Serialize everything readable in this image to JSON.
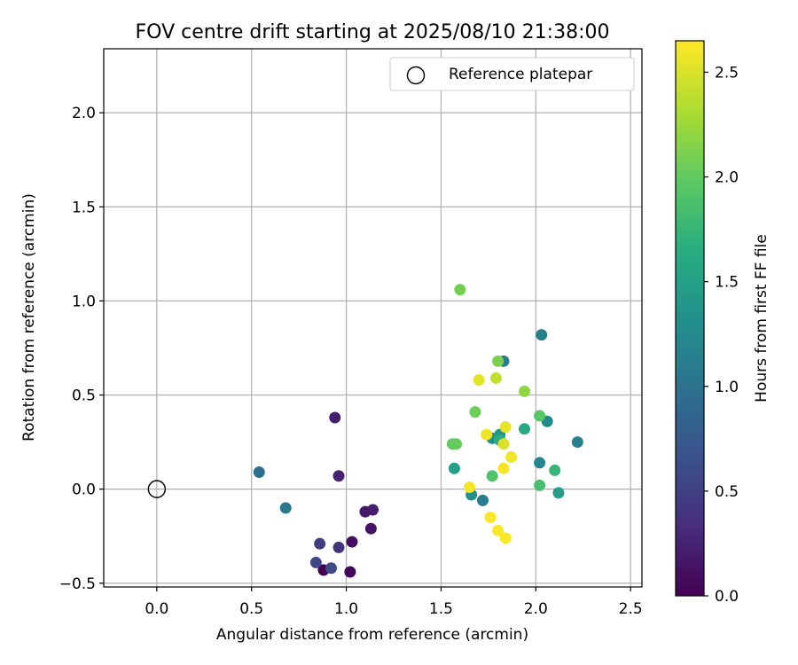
{
  "chart_data": {
    "type": "scatter",
    "title": "FOV centre drift starting at 2025/08/10 21:38:00",
    "xlabel": "Angular distance from reference (arcmin)",
    "ylabel": "Rotation from reference (arcmin)",
    "xlim": [
      -0.28,
      2.56
    ],
    "ylim": [
      -0.52,
      2.34
    ],
    "xticks": [
      0.0,
      0.5,
      1.0,
      1.5,
      2.0,
      2.5
    ],
    "xtick_labels": [
      "0.0",
      "0.5",
      "1.0",
      "1.5",
      "2.0",
      "2.5"
    ],
    "yticks": [
      -0.5,
      0.0,
      0.5,
      1.0,
      1.5,
      2.0
    ],
    "ytick_labels": [
      "−0.5",
      "0.0",
      "0.5",
      "1.0",
      "1.5",
      "2.0"
    ],
    "grid": true,
    "colorbar": {
      "label": "Hours from first FF file",
      "colormap": "viridis",
      "range": [
        0.0,
        2.65
      ],
      "ticks": [
        0.0,
        0.5,
        1.0,
        1.5,
        2.0,
        2.5
      ],
      "tick_labels": [
        "0.0",
        "0.5",
        "1.0",
        "1.5",
        "2.0",
        "2.5"
      ]
    },
    "legend": {
      "placement": "upper right",
      "entries": [
        {
          "label": "Reference platepar",
          "marker": "open-circle"
        }
      ]
    },
    "reference_point": {
      "x": 0.0,
      "y": 0.0
    },
    "points": [
      {
        "x": 0.88,
        "y": -0.43,
        "hours": 0.0
      },
      {
        "x": 1.02,
        "y": -0.44,
        "hours": 0.05
      },
      {
        "x": 1.03,
        "y": -0.28,
        "hours": 0.1
      },
      {
        "x": 1.13,
        "y": -0.21,
        "hours": 0.15
      },
      {
        "x": 1.1,
        "y": -0.12,
        "hours": 0.18
      },
      {
        "x": 1.14,
        "y": -0.11,
        "hours": 0.2
      },
      {
        "x": 0.94,
        "y": 0.38,
        "hours": 0.22
      },
      {
        "x": 0.96,
        "y": 0.07,
        "hours": 0.25
      },
      {
        "x": 0.96,
        "y": -0.31,
        "hours": 0.38
      },
      {
        "x": 0.86,
        "y": -0.29,
        "hours": 0.48
      },
      {
        "x": 0.84,
        "y": -0.39,
        "hours": 0.55
      },
      {
        "x": 0.92,
        "y": -0.42,
        "hours": 0.6
      },
      {
        "x": 0.54,
        "y": 0.09,
        "hours": 0.95
      },
      {
        "x": 0.68,
        "y": -0.1,
        "hours": 1.05
      },
      {
        "x": 1.72,
        "y": -0.06,
        "hours": 1.1
      },
      {
        "x": 1.83,
        "y": 0.68,
        "hours": 1.12
      },
      {
        "x": 2.03,
        "y": 0.82,
        "hours": 1.15
      },
      {
        "x": 2.22,
        "y": 0.25,
        "hours": 1.18
      },
      {
        "x": 2.02,
        "y": 0.14,
        "hours": 1.2
      },
      {
        "x": 2.06,
        "y": 0.36,
        "hours": 1.25
      },
      {
        "x": 1.66,
        "y": -0.03,
        "hours": 1.3
      },
      {
        "x": 1.77,
        "y": 0.27,
        "hours": 1.32
      },
      {
        "x": 1.81,
        "y": 0.29,
        "hours": 1.4
      },
      {
        "x": 2.12,
        "y": -0.02,
        "hours": 1.45
      },
      {
        "x": 1.57,
        "y": 0.11,
        "hours": 1.5
      },
      {
        "x": 1.94,
        "y": 0.32,
        "hours": 1.6
      },
      {
        "x": 1.81,
        "y": 0.26,
        "hours": 1.65
      },
      {
        "x": 2.1,
        "y": 0.1,
        "hours": 1.75
      },
      {
        "x": 2.02,
        "y": 0.02,
        "hours": 1.85
      },
      {
        "x": 1.77,
        "y": 0.07,
        "hours": 1.9
      },
      {
        "x": 2.02,
        "y": 0.39,
        "hours": 1.95
      },
      {
        "x": 1.56,
        "y": 0.24,
        "hours": 2.0
      },
      {
        "x": 1.58,
        "y": 0.24,
        "hours": 2.02
      },
      {
        "x": 1.68,
        "y": 0.41,
        "hours": 2.05
      },
      {
        "x": 1.6,
        "y": 1.06,
        "hours": 2.08
      },
      {
        "x": 1.8,
        "y": 0.68,
        "hours": 2.12
      },
      {
        "x": 1.94,
        "y": 0.52,
        "hours": 2.2
      },
      {
        "x": 1.79,
        "y": 0.59,
        "hours": 2.4
      },
      {
        "x": 1.7,
        "y": 0.58,
        "hours": 2.55
      },
      {
        "x": 1.83,
        "y": 0.24,
        "hours": 2.5
      },
      {
        "x": 1.84,
        "y": 0.33,
        "hours": 2.55
      },
      {
        "x": 1.74,
        "y": 0.29,
        "hours": 2.6
      },
      {
        "x": 1.87,
        "y": 0.17,
        "hours": 2.6
      },
      {
        "x": 1.83,
        "y": 0.11,
        "hours": 2.62
      },
      {
        "x": 1.65,
        "y": 0.01,
        "hours": 2.62
      },
      {
        "x": 1.76,
        "y": -0.15,
        "hours": 2.64
      },
      {
        "x": 1.8,
        "y": -0.22,
        "hours": 2.64
      },
      {
        "x": 1.84,
        "y": -0.26,
        "hours": 2.65
      }
    ]
  }
}
